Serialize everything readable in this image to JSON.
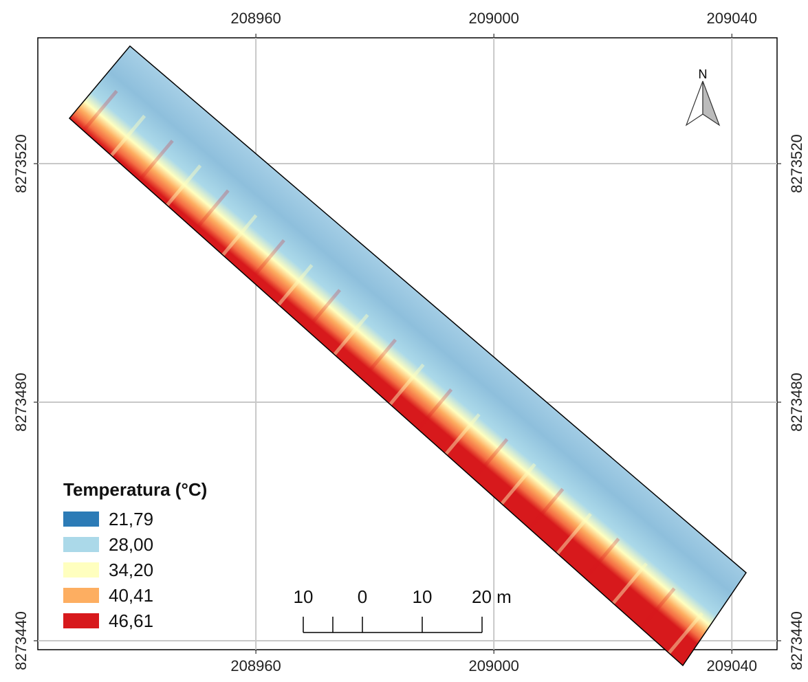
{
  "map": {
    "xlim": [
      208923.35,
      209047.6
    ],
    "ylim": [
      8273438.5,
      8273541.1
    ],
    "xticks": [
      208960,
      209000,
      209040
    ],
    "yticks": [
      8273440,
      8273480,
      8273520
    ],
    "north_label": "N",
    "legend": {
      "title": "Temperatura (°C)",
      "items": [
        {
          "label": "21,79",
          "color": "#2c7bb6"
        },
        {
          "label": "28,00",
          "color": "#abd9e9"
        },
        {
          "label": "34,20",
          "color": "#ffffbf"
        },
        {
          "label": "40,41",
          "color": "#fdae61"
        },
        {
          "label": "46,61",
          "color": "#d7191c"
        }
      ]
    },
    "scale_bar": {
      "labels": [
        "10",
        "0",
        "10",
        "20 m"
      ]
    }
  }
}
